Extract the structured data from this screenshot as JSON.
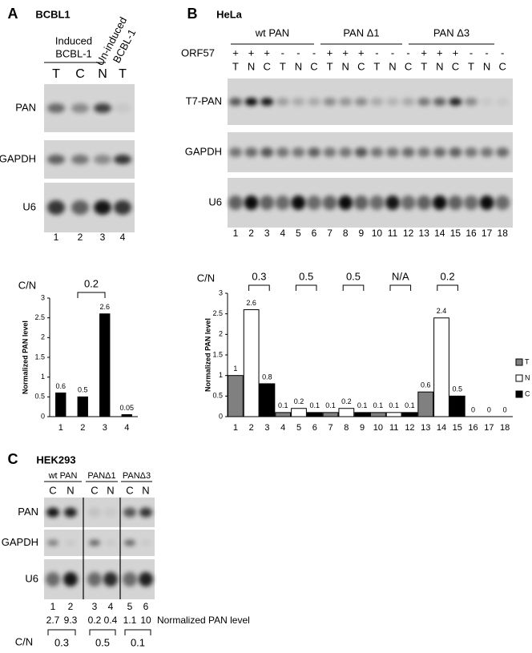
{
  "panel_a": {
    "letter": "A",
    "cell_line": "BCBL1",
    "induced_label": [
      "Induced",
      "BCBL-1"
    ],
    "uninduced_label": [
      "Un-induced",
      "BCBL-1"
    ],
    "lanes": [
      "T",
      "C",
      "N",
      "T"
    ],
    "blots": [
      "PAN",
      "GAPDH",
      "U6"
    ],
    "lane_numbers": [
      "1",
      "2",
      "3",
      "4"
    ],
    "ratio_label": "C/N",
    "ratio": 0.2
  },
  "panel_b": {
    "letter": "B",
    "cell_line": "HeLa",
    "groups": [
      "wt PAN",
      "PAN Δ1",
      "PAN Δ3"
    ],
    "orf_label": "ORF57",
    "orf57": [
      "+",
      "+",
      "+",
      "-",
      "-",
      "-",
      "+",
      "+",
      "+",
      "-",
      "-",
      "-",
      "+",
      "+",
      "+",
      "-",
      "-",
      "-"
    ],
    "lanes": [
      "T",
      "N",
      "C",
      "T",
      "N",
      "C",
      "T",
      "N",
      "C",
      "T",
      "N",
      "C",
      "T",
      "N",
      "C",
      "T",
      "N",
      "C"
    ],
    "blots": [
      "T7-PAN",
      "GAPDH",
      "U6"
    ],
    "lane_numbers": [
      "1",
      "2",
      "3",
      "4",
      "5",
      "6",
      "7",
      "8",
      "9",
      "10",
      "11",
      "12",
      "13",
      "14",
      "15",
      "16",
      "17",
      "18"
    ],
    "ratio_label": "C/N",
    "ratios": [
      0.3,
      0.5,
      0.5,
      "N/A",
      0.2
    ]
  },
  "panel_c": {
    "letter": "C",
    "cell_line": "HEK293",
    "groups": [
      "wt PAN",
      "PANΔ1",
      "PANΔ3"
    ],
    "lanes": [
      "C",
      "N",
      "C",
      "N",
      "C",
      "N"
    ],
    "blots": [
      "PAN",
      "GAPDH",
      "U6"
    ],
    "lane_numbers": [
      "1",
      "2",
      "3",
      "4",
      "5",
      "6"
    ],
    "normalized_levels": [
      2.7,
      9.3,
      0.2,
      0.4,
      1.1,
      10
    ],
    "normalized_label": "Normalized PAN level",
    "ratio_label": "C/N",
    "ratios": [
      0.3,
      0.5,
      0.1
    ]
  },
  "chart_data": [
    {
      "type": "bar",
      "y_label": "Normalized PAN level",
      "categories": [
        "1",
        "2",
        "3",
        "4"
      ],
      "values": [
        0.6,
        0.5,
        2.6,
        0.05
      ],
      "color": "#000000",
      "ylim": [
        0,
        3
      ],
      "yticks": [
        0,
        0.5,
        1,
        1.5,
        2,
        2.5,
        3
      ]
    },
    {
      "type": "bar",
      "y_label": "Normalized PAN level",
      "categories": [
        "1",
        "2",
        "3",
        "4",
        "5",
        "6",
        "7",
        "8",
        "9",
        "10",
        "11",
        "12",
        "13",
        "14",
        "15",
        "16",
        "17",
        "18"
      ],
      "series": [
        {
          "name": "T",
          "color": "#808080",
          "values": [
            1,
            null,
            null,
            0.1,
            null,
            null,
            0.1,
            null,
            null,
            0.1,
            null,
            null,
            0.6,
            null,
            null,
            0,
            null,
            null
          ]
        },
        {
          "name": "N",
          "color": "#ffffff",
          "values": [
            null,
            2.6,
            null,
            null,
            0.2,
            null,
            null,
            0.2,
            null,
            null,
            0.1,
            null,
            null,
            2.4,
            null,
            null,
            0,
            null
          ]
        },
        {
          "name": "C",
          "color": "#000000",
          "values": [
            null,
            null,
            0.8,
            null,
            null,
            0.1,
            null,
            null,
            0.1,
            null,
            null,
            0.1,
            null,
            null,
            0.5,
            null,
            null,
            0
          ]
        }
      ],
      "ylim": [
        0,
        3
      ],
      "yticks": [
        0,
        0.5,
        1,
        1.5,
        2,
        2.5,
        3
      ],
      "legend": "right"
    }
  ]
}
